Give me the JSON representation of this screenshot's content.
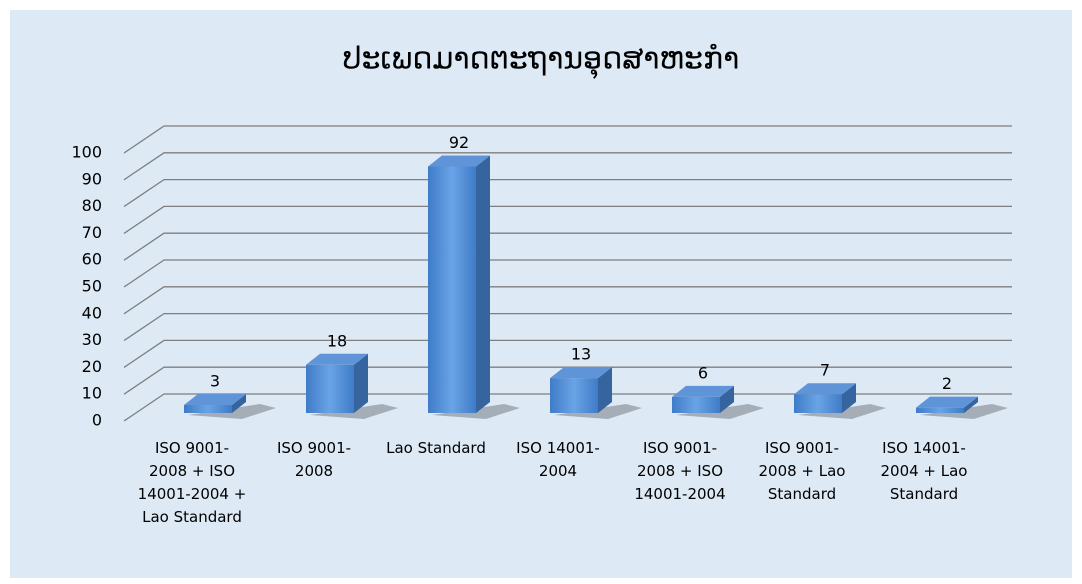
{
  "chart_data": {
    "type": "bar3d",
    "title": "ປະເພດມາດຕະຖານອຸດສາຫະກຳ",
    "categories": [
      "ISO 9001-2008 + ISO 14001-2004 + Lao Standard",
      "ISO 9001-2008",
      "Lao Standard",
      "ISO 14001-2004",
      "ISO 9001-2008 + ISO 14001-2004",
      "ISO 9001-2008 + Lao Standard",
      "ISO 14001-2004 + Lao Standard"
    ],
    "values": [
      3,
      18,
      92,
      13,
      6,
      7,
      2
    ],
    "color": "#4a86d0",
    "ylim": [
      0,
      100
    ],
    "yticks": [
      0,
      10,
      20,
      30,
      40,
      50,
      60,
      70,
      80,
      90,
      100
    ],
    "grid": true
  }
}
